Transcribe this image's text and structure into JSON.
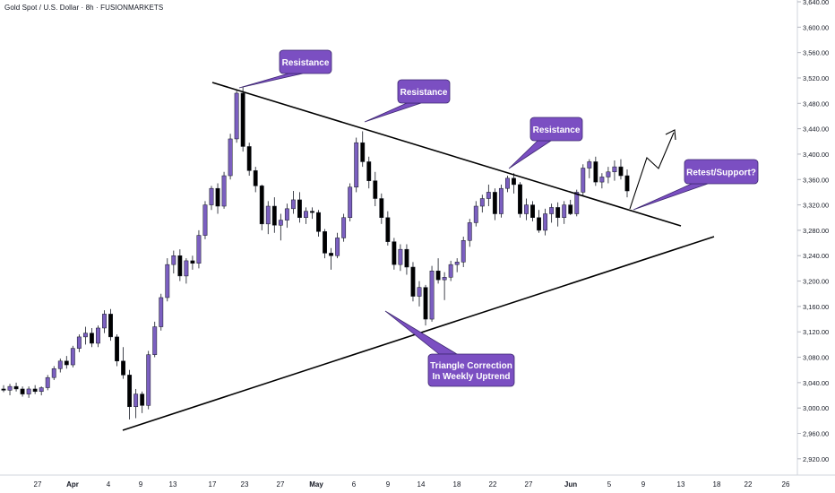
{
  "header": {
    "title": "Gold Spot / U.S. Dollar · 8h · FUSIONMARKETS"
  },
  "chart_data": {
    "type": "candlestick",
    "title": "Gold Spot / U.S. Dollar · 8h · FUSIONMARKETS",
    "ylim": [
      2900,
      3640
    ],
    "y_ticks": [
      "2,920.00",
      "2,960.00",
      "3,000.00",
      "3,040.00",
      "3,080.00",
      "3,120.00",
      "3,160.00",
      "3,200.00",
      "3,240.00",
      "3,280.00",
      "3,320.00",
      "3,360.00",
      "3,400.00",
      "3,440.00",
      "3,480.00",
      "3,520.00",
      "3,560.00",
      "3,600.00",
      "3,640.00"
    ],
    "x_ticks": [
      {
        "label": "27",
        "bold": false
      },
      {
        "label": "Apr",
        "bold": true
      },
      {
        "label": "4",
        "bold": false
      },
      {
        "label": "9",
        "bold": false
      },
      {
        "label": "13",
        "bold": false
      },
      {
        "label": "17",
        "bold": false
      },
      {
        "label": "23",
        "bold": false
      },
      {
        "label": "27",
        "bold": false
      },
      {
        "label": "May",
        "bold": true
      },
      {
        "label": "6",
        "bold": false
      },
      {
        "label": "9",
        "bold": false
      },
      {
        "label": "14",
        "bold": false
      },
      {
        "label": "18",
        "bold": false
      },
      {
        "label": "22",
        "bold": false
      },
      {
        "label": "27",
        "bold": false
      },
      {
        "label": "Jun",
        "bold": true
      },
      {
        "label": "5",
        "bold": false
      },
      {
        "label": "9",
        "bold": false
      },
      {
        "label": "13",
        "bold": false
      },
      {
        "label": "18",
        "bold": false
      },
      {
        "label": "22",
        "bold": false
      },
      {
        "label": "26",
        "bold": false
      }
    ],
    "candles": [
      [
        3030,
        3036,
        3025,
        3028
      ],
      [
        3028,
        3038,
        3020,
        3034
      ],
      [
        3034,
        3040,
        3026,
        3030
      ],
      [
        3030,
        3034,
        3018,
        3022
      ],
      [
        3022,
        3034,
        3016,
        3030
      ],
      [
        3030,
        3036,
        3022,
        3026
      ],
      [
        3026,
        3034,
        3020,
        3032
      ],
      [
        3032,
        3052,
        3028,
        3048
      ],
      [
        3048,
        3066,
        3044,
        3062
      ],
      [
        3062,
        3078,
        3056,
        3074
      ],
      [
        3074,
        3082,
        3062,
        3068
      ],
      [
        3068,
        3098,
        3064,
        3094
      ],
      [
        3094,
        3116,
        3088,
        3112
      ],
      [
        3112,
        3128,
        3100,
        3118
      ],
      [
        3118,
        3126,
        3096,
        3102
      ],
      [
        3102,
        3130,
        3096,
        3126
      ],
      [
        3126,
        3154,
        3118,
        3148
      ],
      [
        3148,
        3156,
        3106,
        3112
      ],
      [
        3112,
        3116,
        3066,
        3074
      ],
      [
        3074,
        3096,
        3046,
        3052
      ],
      [
        3052,
        3060,
        2982,
        3002
      ],
      [
        3002,
        3030,
        2984,
        3022
      ],
      [
        3022,
        3026,
        2992,
        3004
      ],
      [
        3004,
        3090,
        2998,
        3084
      ],
      [
        3084,
        3136,
        3080,
        3128
      ],
      [
        3128,
        3180,
        3122,
        3174
      ],
      [
        3174,
        3236,
        3168,
        3226
      ],
      [
        3226,
        3248,
        3212,
        3240
      ],
      [
        3240,
        3250,
        3200,
        3208
      ],
      [
        3208,
        3236,
        3196,
        3232
      ],
      [
        3232,
        3240,
        3218,
        3228
      ],
      [
        3228,
        3280,
        3220,
        3272
      ],
      [
        3272,
        3326,
        3266,
        3320
      ],
      [
        3320,
        3350,
        3312,
        3346
      ],
      [
        3346,
        3354,
        3306,
        3318
      ],
      [
        3318,
        3372,
        3314,
        3366
      ],
      [
        3366,
        3432,
        3360,
        3424
      ],
      [
        3424,
        3500,
        3418,
        3496
      ],
      [
        3496,
        3506,
        3404,
        3412
      ],
      [
        3412,
        3418,
        3366,
        3374
      ],
      [
        3374,
        3380,
        3340,
        3350
      ],
      [
        3350,
        3352,
        3280,
        3290
      ],
      [
        3290,
        3326,
        3274,
        3318
      ],
      [
        3318,
        3332,
        3276,
        3288
      ],
      [
        3288,
        3306,
        3264,
        3296
      ],
      [
        3296,
        3322,
        3284,
        3314
      ],
      [
        3314,
        3342,
        3306,
        3328
      ],
      [
        3328,
        3340,
        3292,
        3300
      ],
      [
        3300,
        3316,
        3290,
        3310
      ],
      [
        3310,
        3316,
        3298,
        3308
      ],
      [
        3308,
        3312,
        3270,
        3278
      ],
      [
        3278,
        3282,
        3236,
        3244
      ],
      [
        3244,
        3252,
        3218,
        3240
      ],
      [
        3240,
        3276,
        3236,
        3268
      ],
      [
        3268,
        3306,
        3262,
        3300
      ],
      [
        3300,
        3354,
        3294,
        3348
      ],
      [
        3348,
        3426,
        3340,
        3418
      ],
      [
        3418,
        3436,
        3380,
        3388
      ],
      [
        3388,
        3396,
        3346,
        3358
      ],
      [
        3358,
        3372,
        3318,
        3330
      ],
      [
        3330,
        3338,
        3290,
        3300
      ],
      [
        3300,
        3310,
        3256,
        3262
      ],
      [
        3262,
        3268,
        3218,
        3226
      ],
      [
        3226,
        3258,
        3216,
        3250
      ],
      [
        3250,
        3258,
        3210,
        3222
      ],
      [
        3222,
        3230,
        3168,
        3176
      ],
      [
        3176,
        3200,
        3160,
        3190
      ],
      [
        3190,
        3194,
        3130,
        3140
      ],
      [
        3140,
        3224,
        3136,
        3216
      ],
      [
        3216,
        3236,
        3196,
        3202
      ],
      [
        3202,
        3214,
        3170,
        3206
      ],
      [
        3206,
        3232,
        3200,
        3226
      ],
      [
        3226,
        3236,
        3214,
        3230
      ],
      [
        3230,
        3270,
        3222,
        3264
      ],
      [
        3264,
        3298,
        3254,
        3292
      ],
      [
        3292,
        3326,
        3286,
        3318
      ],
      [
        3318,
        3336,
        3308,
        3330
      ],
      [
        3330,
        3352,
        3318,
        3340
      ],
      [
        3340,
        3346,
        3296,
        3306
      ],
      [
        3306,
        3352,
        3300,
        3346
      ],
      [
        3346,
        3366,
        3340,
        3362
      ],
      [
        3362,
        3370,
        3338,
        3352
      ],
      [
        3352,
        3356,
        3300,
        3306
      ],
      [
        3306,
        3330,
        3296,
        3320
      ],
      [
        3320,
        3326,
        3294,
        3300
      ],
      [
        3300,
        3312,
        3276,
        3280
      ],
      [
        3280,
        3314,
        3272,
        3306
      ],
      [
        3306,
        3322,
        3292,
        3316
      ],
      [
        3316,
        3324,
        3286,
        3300
      ],
      [
        3300,
        3326,
        3290,
        3320
      ],
      [
        3320,
        3328,
        3304,
        3306
      ],
      [
        3306,
        3344,
        3302,
        3340
      ],
      [
        3340,
        3384,
        3334,
        3378
      ],
      [
        3378,
        3392,
        3362,
        3388
      ],
      [
        3388,
        3396,
        3350,
        3356
      ],
      [
        3356,
        3370,
        3346,
        3364
      ],
      [
        3364,
        3380,
        3354,
        3372
      ],
      [
        3372,
        3390,
        3358,
        3380
      ],
      [
        3380,
        3392,
        3360,
        3366
      ],
      [
        3366,
        3376,
        3332,
        3342
      ]
    ],
    "annotations": [
      {
        "text": "Resistance"
      },
      {
        "text": "Resistance"
      },
      {
        "text": "Resistance"
      },
      {
        "text": "Retest/Support?"
      },
      {
        "text": "Triangle Correction\nIn Weekly Uptrend"
      }
    ]
  },
  "colors": {
    "bull": "#7b5fc0",
    "bear": "#000000",
    "callout": "#7b4fc2",
    "callout_border": "#3d2870",
    "axis_text": "#131722"
  }
}
